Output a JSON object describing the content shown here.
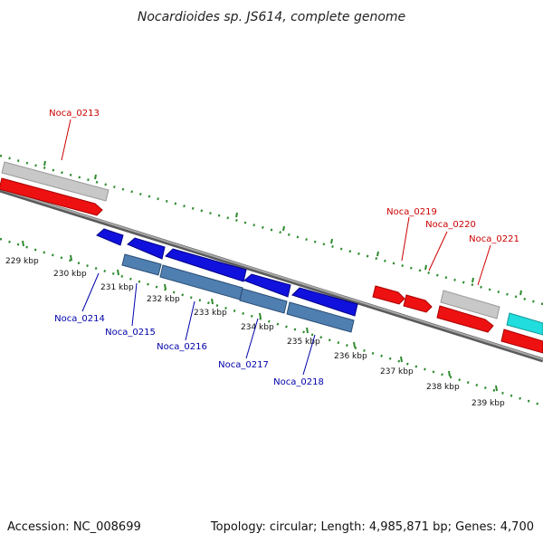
{
  "title": "Nocardioides sp. JS614, complete genome",
  "footer": {
    "accession": "Accession: NC_008699",
    "summary": "Topology: circular; Length: 4,985,871 bp; Genes: 4,700"
  },
  "colors": {
    "backbone": "#8c8c8c",
    "tick": "#2e8b2e",
    "forward_cds": "#ee1111",
    "reverse_cds": "#1111dd",
    "forward_gene": "#c8c8c8",
    "reverse_gene": "#4f7fb0",
    "other_feature": "#22dddd",
    "forward_label": "#cc0000",
    "reverse_label": "#0000aa"
  },
  "scale_labels": [
    "229 kbp",
    "230 kbp",
    "231 kbp",
    "232 kbp",
    "233 kbp",
    "234 kbp",
    "235 kbp",
    "236 kbp",
    "237 kbp",
    "238 kbp",
    "239 kbp"
  ],
  "gene_labels_forward": [
    "Noca_0213",
    "Noca_0219",
    "Noca_0220",
    "Noca_0221"
  ],
  "gene_labels_reverse": [
    "Noca_0214",
    "Noca_0215",
    "Noca_0216",
    "Noca_0217",
    "Noca_0218"
  ]
}
